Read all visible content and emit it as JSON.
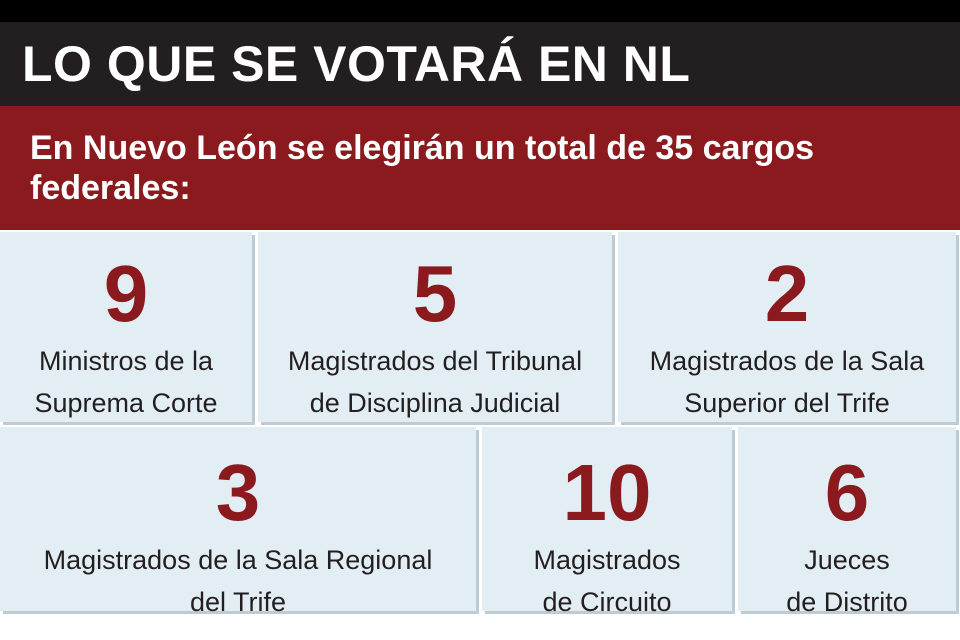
{
  "header": {
    "title": "LO QUE SE VOTARÁ EN NL",
    "subtitle": "En Nuevo León se elegirán un total de 35 cargos federales:"
  },
  "colors": {
    "title_bg": "#231f20",
    "accent": "#8b1a1e",
    "tile_bg": "#e3eef4"
  },
  "positions": [
    {
      "count": "9",
      "line1": "Ministros de la",
      "line2": "Suprema Corte"
    },
    {
      "count": "5",
      "line1": "Magistrados del Tribunal",
      "line2": "de Disciplina Judicial"
    },
    {
      "count": "2",
      "line1": "Magistrados de la Sala",
      "line2": "Superior del Trife"
    },
    {
      "count": "3",
      "line1": "Magistrados de la Sala Regional",
      "line2": "del Trife"
    },
    {
      "count": "10",
      "line1": "Magistrados",
      "line2": "de Circuito"
    },
    {
      "count": "6",
      "line1": "Jueces",
      "line2": "de Distrito"
    }
  ]
}
